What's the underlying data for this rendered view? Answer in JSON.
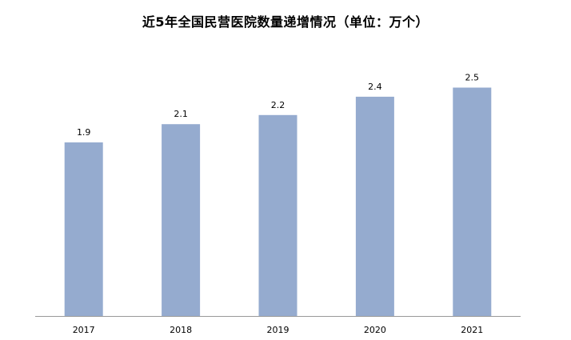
{
  "chart_data": {
    "type": "bar",
    "title": "近5年全国民营医院数量递增情况（单位：万个）",
    "categories": [
      "2017",
      "2018",
      "2019",
      "2020",
      "2021"
    ],
    "values": [
      1.9,
      2.1,
      2.2,
      2.4,
      2.5
    ],
    "xlabel": "",
    "ylabel": "",
    "ylim": [
      0,
      3.4
    ],
    "grid": false,
    "legend": "none",
    "data_labels": true,
    "bar_color": "#95ABCF",
    "axis_color": "#9A9A9A"
  }
}
